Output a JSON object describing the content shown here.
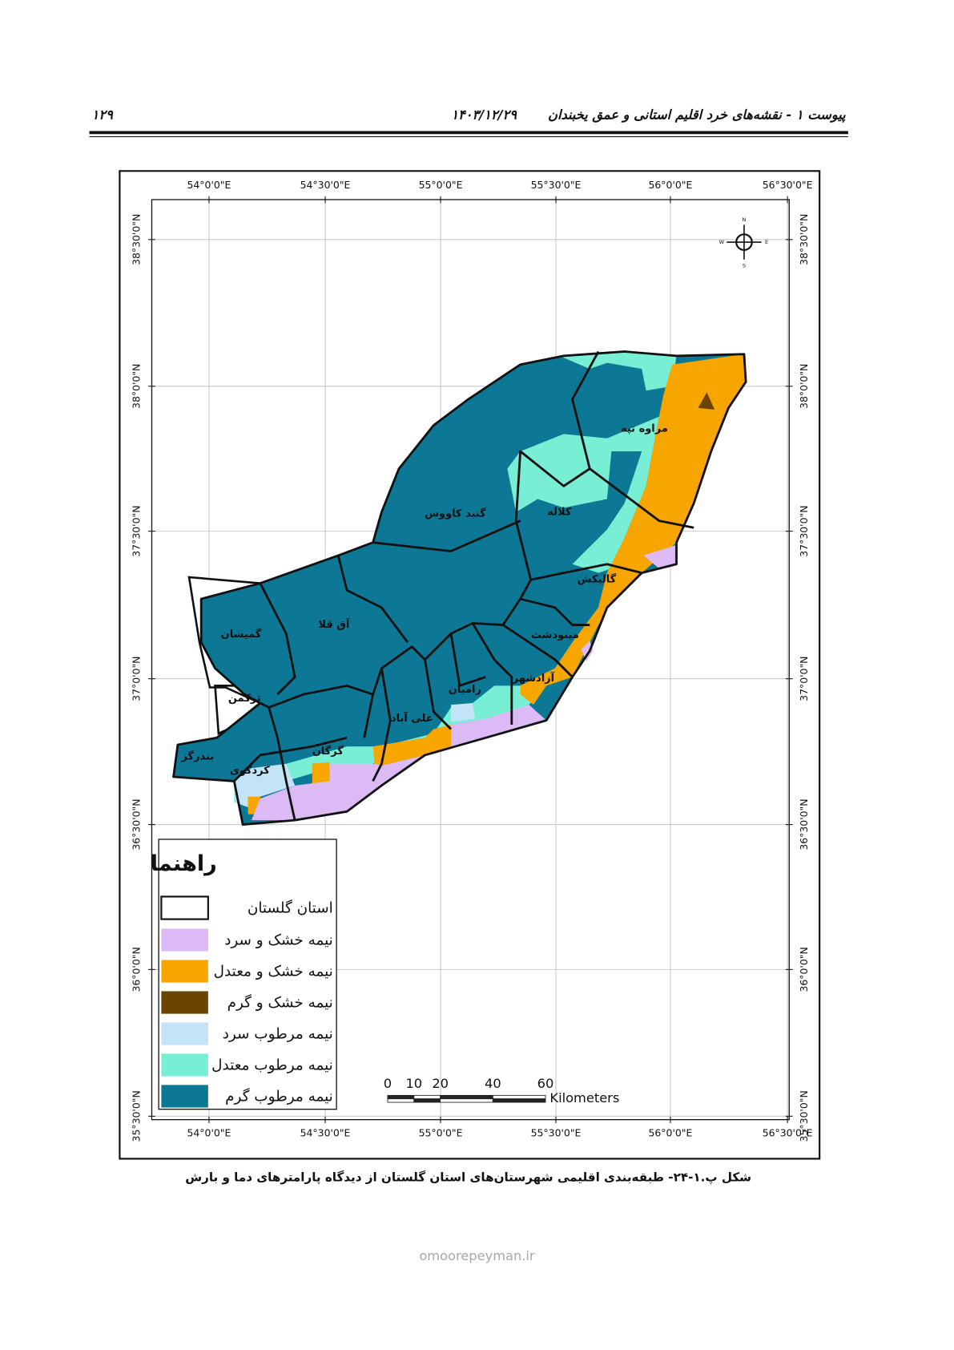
{
  "header": {
    "page_number": "۱۲۹",
    "date": "۱۴۰۳/۱۲/۲۹",
    "title": "پیوست ۱ - نقشه‌های خرد اقلیم استانی و عمق یخبندان"
  },
  "map": {
    "longitude_labels": [
      "54°0'0\"E",
      "54°30'0\"E",
      "55°0'0\"E",
      "55°30'0\"E",
      "56°0'0\"E",
      "56°30'0\"E"
    ],
    "latitude_labels": [
      "38°30'0\"N",
      "38°0'0\"N",
      "37°30'0\"N",
      "37°0'0\"N",
      "36°30'0\"N",
      "36°0'0\"N",
      "35°30'0\"N"
    ],
    "counties": [
      "مراوه تپه",
      "کلاله",
      "گنبد کاووس",
      "گالیکش",
      "آق قلا",
      "گمیشان",
      "مینودشت",
      "آزادشهر",
      "رامیان",
      "ترکمن",
      "علی آباد",
      "بندرگز",
      "گرگان",
      "کردکوی"
    ],
    "compass": {
      "n": "N",
      "e": "E",
      "s": "S",
      "w": "W"
    },
    "legend": {
      "title": "راهنما",
      "items": [
        "استان گلستان",
        "نیمه خشک و سرد",
        "نیمه خشک و معتدل",
        "نیمه خشک و گرم",
        "نیمه مرطوب سرد",
        "نیمه مرطوب معتدل",
        "نیمه مرطوب گرم"
      ]
    },
    "scale_bar": {
      "ticks": [
        0,
        10,
        20,
        40,
        60
      ],
      "unit": "Kilometers"
    }
  },
  "caption": "شکل پ.۱-۲۴- طبقه‌بندی اقلیمی شهرستان‌های استان گلستان از دیدگاه پارامترهای دما و بارش",
  "watermark": "omoorepeyman.ir"
}
